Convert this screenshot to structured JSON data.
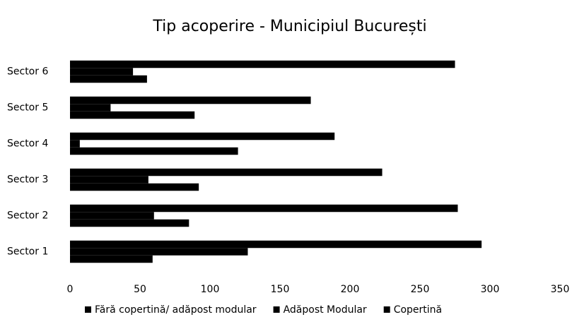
{
  "chart_data": {
    "type": "bar",
    "orientation": "horizontal",
    "title": "Tip acoperire - Municipiul București",
    "categories": [
      "Sector 1",
      "Sector 2",
      "Sector 3",
      "Sector 4",
      "Sector 5",
      "Sector 6"
    ],
    "series": [
      {
        "name": "Fără copertină/ adăpost modular",
        "color": "#000000",
        "values": [
          59,
          85,
          92,
          120,
          89,
          55
        ]
      },
      {
        "name": "Adăpost Modular",
        "color": "#000000",
        "values": [
          127,
          60,
          56,
          7,
          29,
          45
        ]
      },
      {
        "name": "Copertină",
        "color": "#000000",
        "values": [
          294,
          277,
          223,
          189,
          172,
          275
        ]
      }
    ],
    "xlim": [
      0,
      350
    ],
    "xticks": [
      0,
      50,
      100,
      150,
      200,
      250,
      300,
      350
    ],
    "grid": false,
    "legend": "bottom"
  }
}
